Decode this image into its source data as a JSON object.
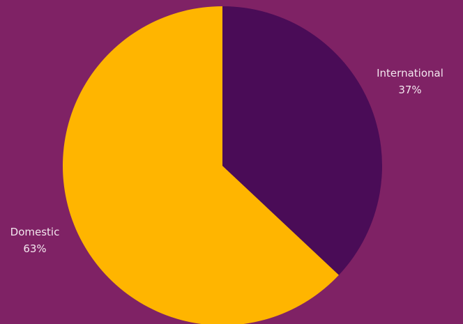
{
  "chart_data": {
    "type": "pie",
    "slices": [
      {
        "label": "International",
        "percent_label": "37%",
        "value": 37,
        "color": "#4a0c57"
      },
      {
        "label": "Domestic",
        "percent_label": "63%",
        "value": 63,
        "color": "#ffb500"
      }
    ],
    "start_angle_deg": 0,
    "direction": "clockwise",
    "background_color": "#7f2265"
  }
}
